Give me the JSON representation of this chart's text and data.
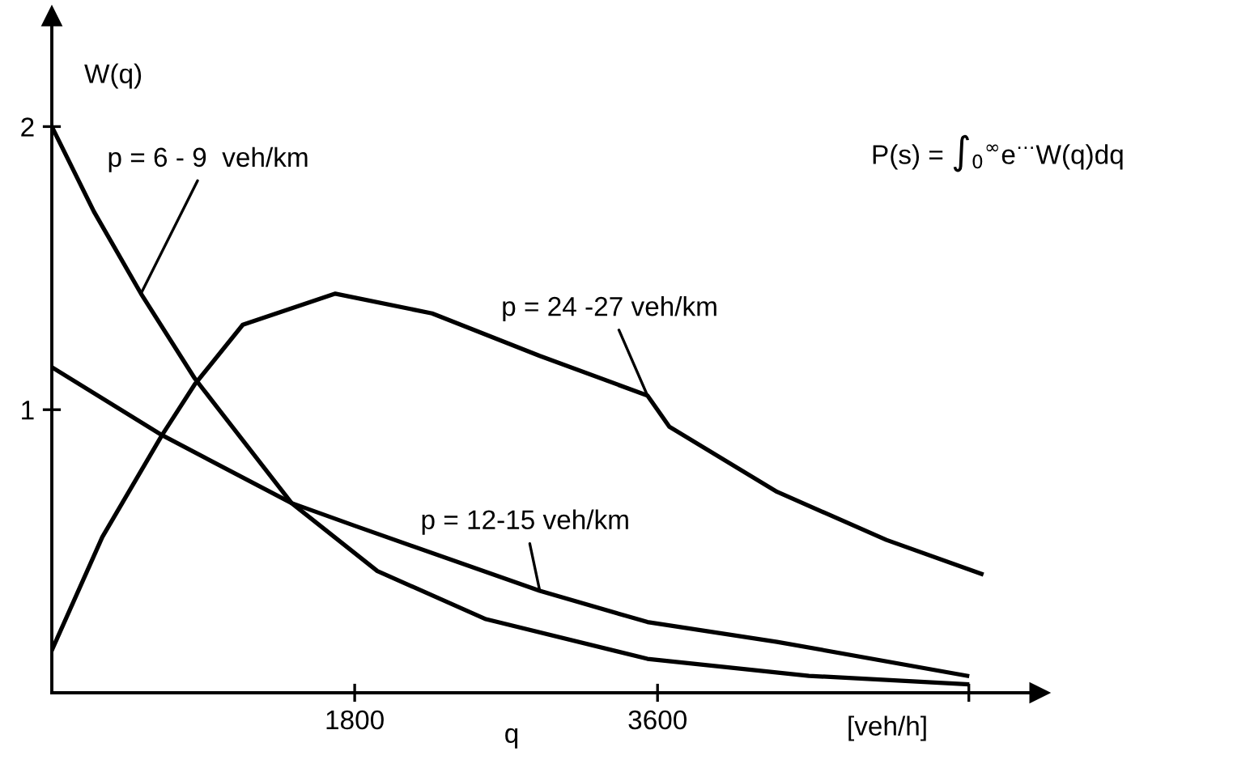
{
  "chart_data": {
    "type": "line",
    "xlabel": "q",
    "ylabel": "W(q)",
    "series": [
      {
        "name": "p = 6 - 9  veh/km",
        "color": "#000000",
        "x": [
          0,
          250,
          530,
          850,
          1425,
          1935,
          2580,
          3540,
          4500,
          5440
        ],
        "values": [
          2.0,
          1.7,
          1.41,
          1.11,
          0.67,
          0.43,
          0.26,
          0.12,
          0.06,
          0.03
        ]
      },
      {
        "name": "p = 24 -27 veh/km",
        "color": "#000000",
        "x": [
          0,
          300,
          655,
          850,
          1135,
          1685,
          2260,
          2900,
          3540,
          3670,
          4310,
          4960,
          5525
        ],
        "values": [
          0.15,
          0.55,
          0.91,
          1.09,
          1.3,
          1.41,
          1.34,
          1.19,
          1.05,
          0.94,
          0.71,
          0.54,
          0.42
        ]
      },
      {
        "name": "p = 12-15 veh/km",
        "color": "#000000",
        "x": [
          0,
          655,
          1425,
          1800,
          2900,
          3540,
          4310,
          5440
        ],
        "values": [
          1.15,
          0.91,
          0.67,
          0.59,
          0.36,
          0.25,
          0.18,
          0.06
        ]
      }
    ],
    "xlim": [
      0,
      5870
    ],
    "ylim": [
      0,
      2.39
    ],
    "xticks": [
      1800,
      3600,
      {
        "value": 5450,
        "label": null
      }
    ],
    "yticks": [
      1,
      2
    ],
    "grid": false,
    "legend": false,
    "marker": "none",
    "line_style": "solid",
    "annotations": [
      "P(s) = ∫$_{0}$$^{∞}$e$^{⋯}$W(q)dq",
      "[veh/h]"
    ]
  }
}
